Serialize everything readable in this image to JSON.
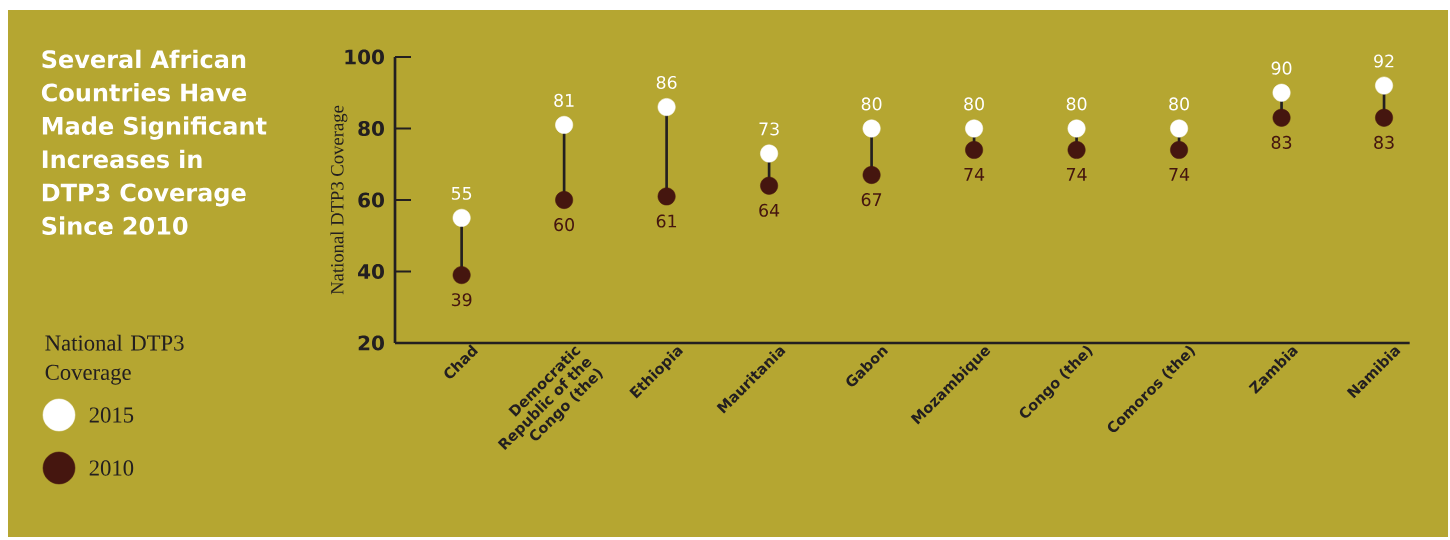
{
  "chart_data": {
    "type": "scatter",
    "title": "Several African Countries Have Made Significant Increases in DTP3 Coverage Since 2010",
    "ylabel": "National DTP3 Coverage",
    "legend_title": "National DTP3 Coverage",
    "categories": [
      "Chad",
      "Democratic Republic of the Congo (the)",
      "Ethiopia",
      "Mauritania",
      "Gabon",
      "Mozambique",
      "Congo (the)",
      "Comoros (the)",
      "Zambia",
      "Namibia"
    ],
    "series": [
      {
        "name": "2015",
        "color": "#ffffff",
        "values": [
          55,
          81,
          86,
          73,
          80,
          80,
          80,
          80,
          90,
          92
        ]
      },
      {
        "name": "2010",
        "color": "#45160f",
        "values": [
          39,
          60,
          61,
          64,
          67,
          74,
          74,
          74,
          83,
          83
        ]
      }
    ],
    "ylim": [
      20,
      100
    ],
    "yticks": [
      20,
      40,
      60,
      80,
      100
    ],
    "data_labels": true,
    "legend": "left",
    "marker": "circle"
  }
}
